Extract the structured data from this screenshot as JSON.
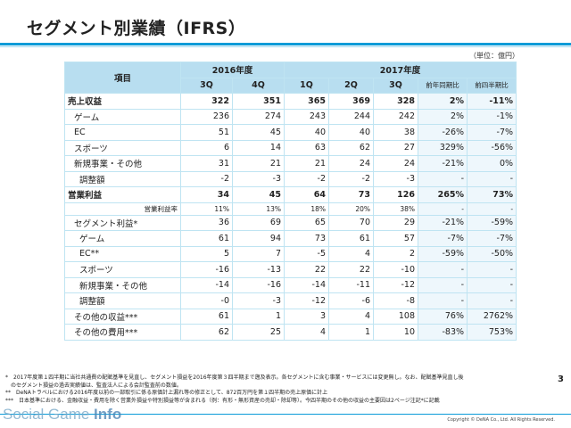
{
  "title": "セグメント別業績（IFRS）",
  "unit": "（単位：億円）",
  "header": {
    "item": "項目",
    "fy2016": "2016年度",
    "fy2017": "2017年度",
    "q": [
      "3Q",
      "4Q",
      "1Q",
      "2Q",
      "3Q"
    ],
    "yoy": "前年同期比",
    "qoq": "前四半期比"
  },
  "rows": [
    {
      "label": "売上収益",
      "values": [
        "322",
        "351",
        "365",
        "369",
        "328"
      ],
      "yoy": "2%",
      "qoq": "-11%"
    },
    {
      "label": "ゲーム",
      "values": [
        "236",
        "274",
        "243",
        "244",
        "242"
      ],
      "yoy": "2%",
      "qoq": "-1%"
    },
    {
      "label": "EC",
      "values": [
        "51",
        "45",
        "40",
        "40",
        "38"
      ],
      "yoy": "-26%",
      "qoq": "-7%"
    },
    {
      "label": "スポーツ",
      "values": [
        "6",
        "14",
        "63",
        "62",
        "27"
      ],
      "yoy": "329%",
      "qoq": "-56%"
    },
    {
      "label": "新規事業・その他",
      "values": [
        "31",
        "21",
        "21",
        "24",
        "24"
      ],
      "yoy": "-21%",
      "qoq": "0%"
    },
    {
      "label": "調整額",
      "values": [
        "-2",
        "-3",
        "-2",
        "-2",
        "-3"
      ],
      "yoy": "-",
      "qoq": "-"
    },
    {
      "label": "営業利益",
      "values": [
        "34",
        "45",
        "64",
        "73",
        "126"
      ],
      "yoy": "265%",
      "qoq": "73%"
    },
    {
      "label": "営業利益率",
      "values": [
        "11%",
        "13%",
        "18%",
        "20%",
        "38%"
      ],
      "yoy": "-",
      "qoq": "-"
    },
    {
      "label": "セグメント利益*",
      "values": [
        "36",
        "69",
        "65",
        "70",
        "29"
      ],
      "yoy": "-21%",
      "qoq": "-59%"
    },
    {
      "label": "ゲーム",
      "values": [
        "61",
        "94",
        "73",
        "61",
        "57"
      ],
      "yoy": "-7%",
      "qoq": "-7%"
    },
    {
      "label": "EC**",
      "values": [
        "5",
        "7",
        "-5",
        "4",
        "2"
      ],
      "yoy": "-59%",
      "qoq": "-50%"
    },
    {
      "label": "スポーツ",
      "values": [
        "-16",
        "-13",
        "22",
        "22",
        "-10"
      ],
      "yoy": "-",
      "qoq": "-"
    },
    {
      "label": "新規事業・その他",
      "values": [
        "-14",
        "-16",
        "-14",
        "-11",
        "-12"
      ],
      "yoy": "-",
      "qoq": "-"
    },
    {
      "label": "調整額",
      "values": [
        "-0",
        "-3",
        "-12",
        "-6",
        "-8"
      ],
      "yoy": "-",
      "qoq": "-"
    },
    {
      "label": "その他の収益***",
      "values": [
        "61",
        "1",
        "3",
        "4",
        "108"
      ],
      "yoy": "76%",
      "qoq": "2762%"
    },
    {
      "label": "その他の費用***",
      "values": [
        "62",
        "25",
        "4",
        "1",
        "10"
      ],
      "yoy": "-83%",
      "qoq": "753%"
    }
  ],
  "notes": [
    "*　2017年度第１四半期に当社共通費の配賦基準を見直し、セグメント損益を2016年度第３四半期まで遡及表示。各セグメントに含む事業・サービスには変更無し。なお、配賦基準見直し後",
    "　のセグメント損益の過去実績値は、監査法人による会計監査前の数値。",
    "**　DeNAトラベルにおける2016年度以前の一部取引に係る原価計上漏れ等の修正として、872百万円を第１四半期の売上原価に計上",
    "***　日本基準における、金融収益・費用を除く営業外損益や特別損益等が含まれる（例：有形・無形資産の売却・除却等）。今四半期のその他の収益の主要因は2ページ注記*に記載"
  ],
  "page_number": "3",
  "watermark": {
    "a": "Social Game ",
    "b": "Info"
  },
  "copyright": "Copyright © DeNA Co., Ltd. All Rights Reserved."
}
